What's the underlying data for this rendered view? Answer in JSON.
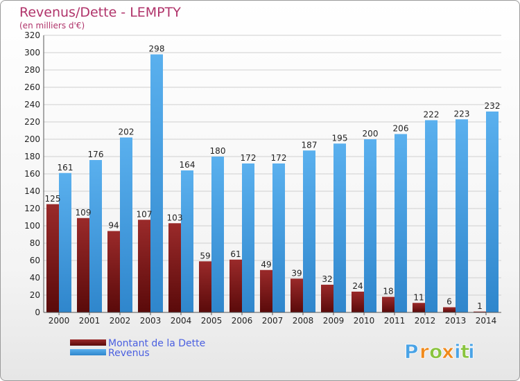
{
  "colors": {
    "title": "#b0336a",
    "debt": "#7a1414",
    "revenue": "#4aa3e6",
    "legend_text": "#4a5fe0",
    "grid": "#cfcfcf"
  },
  "brand": {
    "letters": [
      "P",
      "r",
      "o",
      "x",
      "i",
      "t",
      "i"
    ],
    "letter_colors": [
      "#4aa3e6",
      "#f08a1c",
      "#8ac43f",
      "#f08a1c",
      "#4aa3e6",
      "#8ac43f",
      "#4aa3e6"
    ]
  },
  "chart_data": {
    "type": "bar",
    "title": "Revenus/Dette - LEMPTY",
    "subtitle": "(en milliers d'€)",
    "categories": [
      "2000",
      "2001",
      "2002",
      "2003",
      "2004",
      "2005",
      "2006",
      "2007",
      "2008",
      "2009",
      "2010",
      "2011",
      "2012",
      "2013",
      "2014"
    ],
    "series": [
      {
        "name": "Montant de la Dette",
        "values": [
          125,
          109,
          94,
          107,
          103,
          59,
          61,
          49,
          39,
          32,
          24,
          18,
          11,
          6,
          1
        ]
      },
      {
        "name": "Revenus",
        "values": [
          161,
          176,
          202,
          298,
          164,
          180,
          172,
          172,
          187,
          195,
          200,
          206,
          222,
          223,
          232
        ]
      }
    ],
    "ylim": [
      0,
      320
    ],
    "ytick_step": 20,
    "grid": true,
    "legend": "bottom-left"
  }
}
